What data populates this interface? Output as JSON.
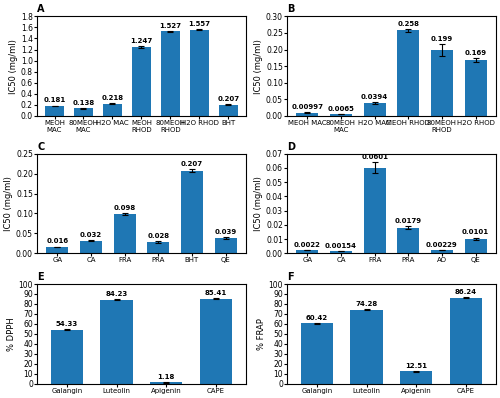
{
  "chart_data": [
    {
      "type": "bar",
      "title": "A",
      "categories": [
        "MEOH\nMAC",
        "80MEOH\nMAC",
        "H2O MAC",
        "MEOH\nRHOD",
        "80MEOH\nRHOD",
        "H2O RHOD",
        "BHT"
      ],
      "values": [
        0.181,
        0.138,
        0.218,
        1.247,
        1.527,
        1.557,
        0.207
      ],
      "errors": [
        0.008,
        0.008,
        0.008,
        0.015,
        0.012,
        0.012,
        0.008
      ],
      "ylabel": "IC50 (mg/ml)",
      "ylim": [
        0,
        1.8
      ],
      "yticks": [
        {
          "value": 0.0,
          "label": "0.0"
        },
        {
          "value": 0.2,
          "label": "0.2"
        },
        {
          "value": 0.4,
          "label": "0.4"
        },
        {
          "value": 0.6,
          "label": "0.6"
        },
        {
          "value": 0.8,
          "label": "0.8"
        },
        {
          "value": 1.0,
          "label": "1.0"
        },
        {
          "value": 1.2,
          "label": "1.2"
        },
        {
          "value": 1.4,
          "label": "1.4"
        },
        {
          "value": 1.6,
          "label": "1.6"
        },
        {
          "value": 1.8,
          "label": "1.8"
        }
      ],
      "data_labels": true
    },
    {
      "type": "bar",
      "title": "B",
      "categories": [
        "MEOH MAC",
        "80MEOH\nMAC",
        "H2O MAC",
        "MEOH RHOD",
        "80MEOH\nRHOD",
        "H2O RHOD"
      ],
      "values": [
        0.00997,
        0.0065,
        0.0394,
        0.258,
        0.199,
        0.169
      ],
      "errors": [
        0.001,
        0.0005,
        0.003,
        0.004,
        0.018,
        0.005
      ],
      "ylabel": "IC50 (mg/ml)",
      "ylim": [
        0,
        0.3
      ],
      "yticks": [
        {
          "value": 0.0,
          "label": "0.00"
        },
        {
          "value": 0.05,
          "label": "0.05"
        },
        {
          "value": 0.1,
          "label": "0.10"
        },
        {
          "value": 0.15,
          "label": "0.15"
        },
        {
          "value": 0.2,
          "label": "0.20"
        },
        {
          "value": 0.25,
          "label": "0.25"
        },
        {
          "value": 0.3,
          "label": "0.30"
        }
      ],
      "data_labels": true
    },
    {
      "type": "bar",
      "title": "C",
      "categories": [
        "GA",
        "CA",
        "FRA",
        "PRA",
        "BHT",
        "QE"
      ],
      "values": [
        0.016,
        0.032,
        0.098,
        0.028,
        0.207,
        0.039
      ],
      "errors": [
        0.001,
        0.002,
        0.003,
        0.002,
        0.004,
        0.002
      ],
      "ylabel": "IC50 (mg/ml)",
      "ylim": [
        0,
        0.25
      ],
      "yticks": [
        {
          "value": 0.0,
          "label": "0.00"
        },
        {
          "value": 0.05,
          "label": "0.05"
        },
        {
          "value": 0.1,
          "label": "0.10"
        },
        {
          "value": 0.15,
          "label": "0.15"
        },
        {
          "value": 0.2,
          "label": "0.20"
        },
        {
          "value": 0.25,
          "label": "0.25"
        }
      ],
      "data_labels": true
    },
    {
      "type": "bar",
      "title": "D",
      "categories": [
        "GA",
        "CA",
        "FRA",
        "PRA",
        "AO",
        "QE"
      ],
      "values": [
        0.0022,
        0.00154,
        0.0601,
        0.0179,
        0.00229,
        0.0101
      ],
      "errors": [
        0.0002,
        0.0001,
        0.004,
        0.001,
        0.0002,
        0.001
      ],
      "ylabel": "IC50 (mg/ml)",
      "ylim": [
        0,
        0.07
      ],
      "yticks": [
        {
          "value": 0.0,
          "label": "0.00"
        },
        {
          "value": 0.01,
          "label": "0.01"
        },
        {
          "value": 0.02,
          "label": "0.02"
        },
        {
          "value": 0.03,
          "label": "0.03"
        },
        {
          "value": 0.04,
          "label": "0.04"
        },
        {
          "value": 0.05,
          "label": "0.05"
        },
        {
          "value": 0.06,
          "label": "0.06"
        },
        {
          "value": 0.07,
          "label": "0.07"
        }
      ],
      "data_labels": true
    },
    {
      "type": "bar",
      "title": "E",
      "categories": [
        "Galangin",
        "Luteolin",
        "Apigenin",
        "CAPE"
      ],
      "values": [
        54.33,
        84.23,
        1.18,
        85.41
      ],
      "errors": [
        0.8,
        0.5,
        0.1,
        0.4
      ],
      "ylabel": "% DPPH",
      "ylim": [
        0,
        100
      ],
      "yticks": [
        0,
        10,
        20,
        30,
        40,
        50,
        60,
        70,
        80,
        90,
        100
      ],
      "data_labels": true
    },
    {
      "type": "bar",
      "title": "F",
      "categories": [
        "Galangin",
        "Luteolin",
        "Apigenin",
        "CAPE"
      ],
      "values": [
        60.42,
        74.28,
        12.51,
        86.24
      ],
      "errors": [
        0.8,
        0.5,
        0.4,
        0.4
      ],
      "ylabel": "% FRAP",
      "ylim": [
        0,
        100
      ],
      "yticks": [
        0,
        10,
        20,
        30,
        40,
        50,
        60,
        70,
        80,
        90,
        100
      ],
      "data_labels": true
    }
  ]
}
